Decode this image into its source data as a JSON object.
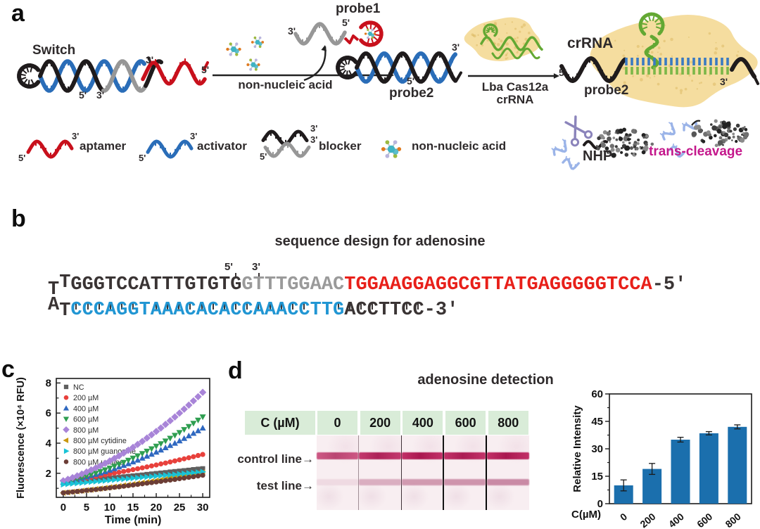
{
  "panels": {
    "a": {
      "letter": "a",
      "labels": {
        "switch": "Switch",
        "probe1": "probe1",
        "probe2": "probe2",
        "non_nucleic_acid": "non-nucleic acid",
        "cas_arrow_line1": "Lba Cas12a",
        "cas_arrow_line2": "crRNA",
        "crRNA": "crRNA",
        "probe2_right": "probe2",
        "nhp": "NHP",
        "trans_cleavage": "trans-cleavage"
      },
      "primes": {
        "five": "5'",
        "three": "3'"
      },
      "legend": {
        "aptamer": "aptamer",
        "activator": "activator",
        "blocker": "blocker",
        "non_nucleic_acid": "non-nucleic acid"
      },
      "colors": {
        "aptamer": "#c8101c",
        "activator": "#2a6db8",
        "blocker_black": "#1f1b1c",
        "blocker_gray": "#979797",
        "cas_protein": "#f5dd9f",
        "cas_speckle": "#ddb964",
        "crRNA": "#63a833",
        "molecule_core": "#3fb3c3",
        "molecule_dots": [
          "#e07a1f",
          "#9cb93f",
          "#b9b5dd"
        ],
        "molecule_bond": "#b9c6ca",
        "scissors": "#8b84bb",
        "ribbon": "#9bb4e8",
        "nanoparticle_shades": [
          "#232323",
          "#3b3b3b",
          "#565656",
          "#707070",
          "#8b8b8b"
        ],
        "ladder_blue": "#3a7ac2",
        "ladder_green": "#7cb748",
        "arrow": "#222222",
        "trans_cleavage_text": "#c4188c"
      }
    },
    "b": {
      "letter": "b",
      "title": "sequence design for adenosine",
      "top_strand": {
        "prefix": "TT",
        "segments": [
          {
            "text": "GGGTCCATTTGTGTG",
            "color": "#3a3434"
          },
          {
            "text": "GTTTGGAAC",
            "color": "#9a9a9a"
          },
          {
            "text": "TGGAAGGAGGCGTTATGAGGGGGTCCA",
            "color": "#e8201a"
          }
        ],
        "end": "-5'"
      },
      "bottom_strand": {
        "prefix": "AT",
        "segments": [
          {
            "text": "CCCAGGTAAACACACCAAACCTTG",
            "color": "#2196d3"
          },
          {
            "text": "ACCTTCC",
            "color": "#3a3434"
          }
        ],
        "end": "-3'"
      },
      "pair_count": 31,
      "primes_over": {
        "five": "5'",
        "three": "3'"
      }
    },
    "c": {
      "letter": "c"
    },
    "d": {
      "letter": "d",
      "title": "adenosine detection",
      "table_header": {
        "label": "C (µM)",
        "concentrations": [
          "0",
          "200",
          "400",
          "600",
          "800"
        ]
      },
      "strip_labels": {
        "control": "control line",
        "test": "test line",
        "arrow": "→"
      },
      "strips": {
        "count": 5,
        "control_line_relative_intensity": [
          0.78,
          0.95,
          1,
          0.98,
          1
        ],
        "test_line_relative_intensity": [
          0.15,
          0.5,
          0.66,
          0.7,
          0.78
        ]
      }
    }
  },
  "chart_data": [
    {
      "type": "scatter",
      "title": "",
      "xlabel": "Time (min)",
      "ylabel": "Fluorescence (×10⁴ RFU)",
      "xlim": [
        -1.5,
        31.5
      ],
      "ylim": [
        0.4,
        8.3
      ],
      "xticks": [
        0,
        5,
        10,
        15,
        20,
        25,
        30
      ],
      "yticks": [
        2,
        4,
        6,
        8
      ],
      "yticks_minor": [
        1,
        3,
        5,
        7
      ],
      "xticks_minor": [
        2.5,
        7.5,
        12.5,
        17.5,
        22.5,
        27.5
      ],
      "legend_position": "top-left",
      "grid": false,
      "x": [
        0,
        1,
        2,
        3,
        4,
        5,
        6,
        7,
        8,
        9,
        10,
        11,
        12,
        13,
        14,
        15,
        16,
        17,
        18,
        19,
        20,
        21,
        22,
        23,
        24,
        25,
        26,
        27,
        28,
        29,
        30
      ],
      "series": [
        {
          "name": "NC",
          "marker": "square",
          "color": "#5f5f5f",
          "values": [
            1.35,
            1.38,
            1.41,
            1.45,
            1.48,
            1.51,
            1.54,
            1.57,
            1.61,
            1.64,
            1.67,
            1.7,
            1.73,
            1.77,
            1.8,
            1.83,
            1.86,
            1.89,
            1.93,
            1.96,
            1.99,
            2.02,
            2.05,
            2.09,
            2.12,
            2.15,
            2.18,
            2.21,
            2.25,
            2.28,
            2.31
          ]
        },
        {
          "name": "200 µM",
          "marker": "circle",
          "color": "#e8413c",
          "values": [
            1.45,
            1.5,
            1.54,
            1.59,
            1.64,
            1.69,
            1.74,
            1.79,
            1.84,
            1.9,
            1.95,
            2.01,
            2.06,
            2.12,
            2.18,
            2.24,
            2.3,
            2.36,
            2.42,
            2.49,
            2.55,
            2.62,
            2.68,
            2.75,
            2.82,
            2.89,
            2.96,
            3.03,
            3.1,
            3.18,
            3.25
          ]
        },
        {
          "name": "400 µM",
          "marker": "triangle-up",
          "color": "#2f68c0",
          "values": [
            1.4,
            1.46,
            1.53,
            1.6,
            1.67,
            1.75,
            1.83,
            1.92,
            2.01,
            2.1,
            2.2,
            2.3,
            2.41,
            2.52,
            2.63,
            2.75,
            2.87,
            3.0,
            3.13,
            3.26,
            3.4,
            3.54,
            3.69,
            3.84,
            3.99,
            4.15,
            4.31,
            4.48,
            4.65,
            4.82,
            5.0
          ]
        },
        {
          "name": "600 µM",
          "marker": "triangle-down",
          "color": "#2e9e50",
          "values": [
            1.4,
            1.47,
            1.55,
            1.63,
            1.72,
            1.81,
            1.91,
            2.01,
            2.12,
            2.23,
            2.35,
            2.47,
            2.6,
            2.73,
            2.87,
            3.01,
            3.16,
            3.31,
            3.47,
            3.63,
            3.8,
            3.97,
            4.15,
            4.33,
            4.52,
            4.71,
            4.91,
            5.11,
            5.32,
            5.53,
            5.75
          ]
        },
        {
          "name": "800 µM",
          "marker": "diamond",
          "color": "#a884d8",
          "values": [
            1.5,
            1.6,
            1.71,
            1.83,
            1.95,
            2.08,
            2.22,
            2.36,
            2.5,
            2.66,
            2.82,
            2.99,
            3.16,
            3.34,
            3.53,
            3.72,
            3.92,
            4.12,
            4.34,
            4.56,
            4.78,
            5.01,
            5.25,
            5.49,
            5.74,
            6.0,
            6.26,
            6.53,
            6.81,
            7.09,
            7.38
          ]
        },
        {
          "name": "800 µM cytidine",
          "marker": "triangle-left",
          "color": "#c9980f",
          "values": [
            0.7,
            0.73,
            0.77,
            0.8,
            0.84,
            0.88,
            0.91,
            0.95,
            0.99,
            1.03,
            1.07,
            1.11,
            1.15,
            1.2,
            1.24,
            1.28,
            1.33,
            1.38,
            1.42,
            1.47,
            1.52,
            1.57,
            1.62,
            1.67,
            1.72,
            1.78,
            1.83,
            1.88,
            1.94,
            2.0,
            2.05
          ]
        },
        {
          "name": "800 µM guanosine",
          "marker": "triangle-right",
          "color": "#19c3d6",
          "values": [
            1.25,
            1.28,
            1.31,
            1.33,
            1.36,
            1.39,
            1.42,
            1.45,
            1.47,
            1.5,
            1.53,
            1.56,
            1.59,
            1.61,
            1.64,
            1.67,
            1.7,
            1.73,
            1.75,
            1.78,
            1.81,
            1.84,
            1.87,
            1.89,
            1.92,
            1.95,
            1.98,
            2.01,
            2.03,
            2.06,
            2.09
          ]
        },
        {
          "name": "800 µM uridine",
          "marker": "circle",
          "color": "#6b3d36",
          "values": [
            0.7,
            0.73,
            0.76,
            0.79,
            0.82,
            0.86,
            0.89,
            0.92,
            0.96,
            0.99,
            1.03,
            1.07,
            1.1,
            1.14,
            1.18,
            1.22,
            1.26,
            1.3,
            1.34,
            1.38,
            1.42,
            1.46,
            1.51,
            1.55,
            1.59,
            1.64,
            1.68,
            1.73,
            1.77,
            1.82,
            1.87
          ]
        }
      ]
    },
    {
      "type": "bar",
      "categories": [
        "0",
        "200",
        "400",
        "600",
        "800"
      ],
      "values": [
        10,
        19,
        35,
        38.5,
        42
      ],
      "errors": [
        3,
        3,
        1.3,
        0.9,
        1.1
      ],
      "xlabel": "C(µM)",
      "ylabel": "Relative Intensity",
      "ylim": [
        0,
        60
      ],
      "yticks": [
        0,
        15,
        30,
        45,
        60
      ],
      "yticks_minor": [
        7.5,
        22.5,
        37.5,
        52.5
      ],
      "bar_color": "#1b6fad",
      "grid": false
    }
  ]
}
